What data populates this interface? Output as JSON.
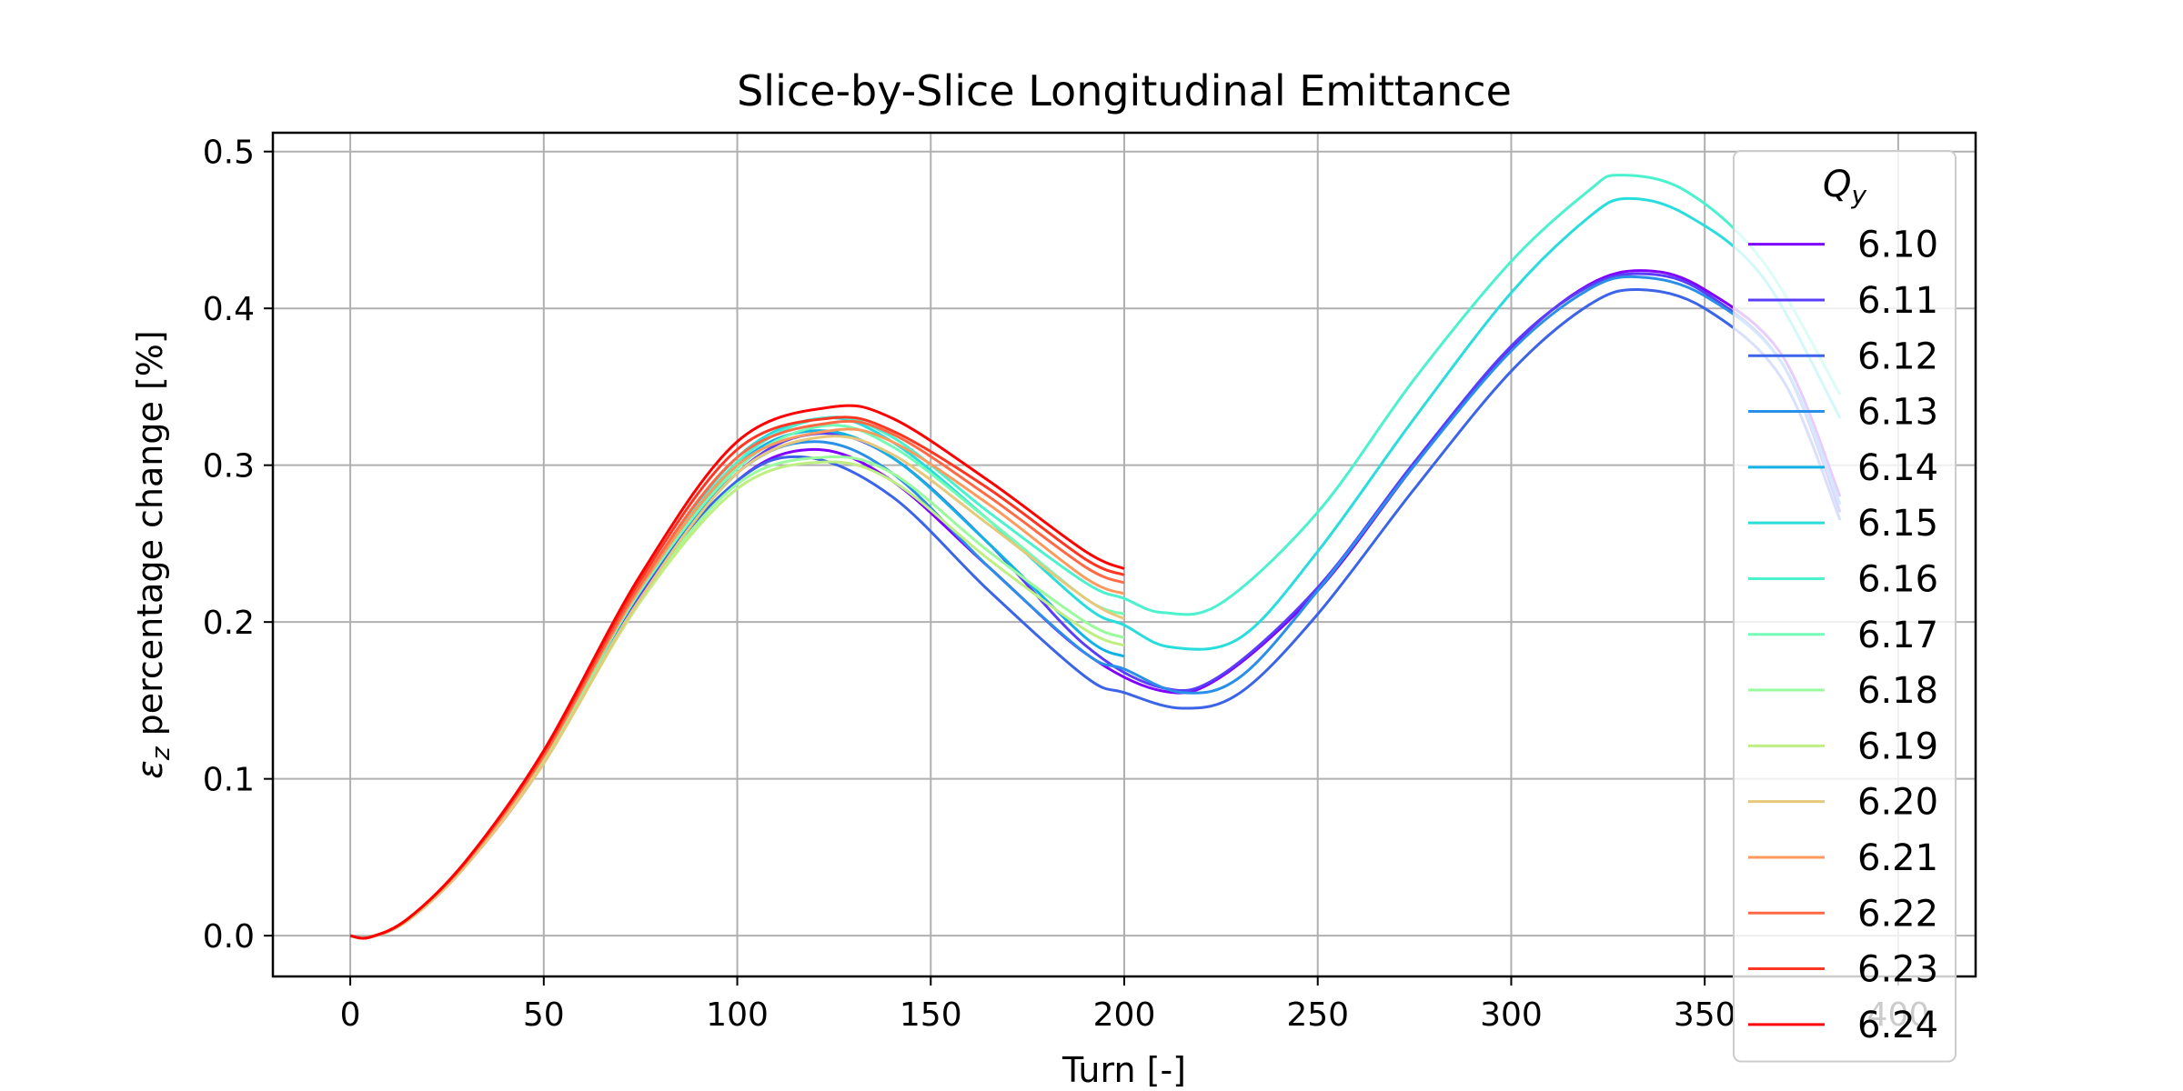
{
  "chart_data": {
    "type": "line",
    "title": "Slice-by-Slice Longitudinal Emittance",
    "xlabel": "Turn [-]",
    "ylabel_parts": [
      "ε",
      "z",
      " percentage change [%]"
    ],
    "xlim": [
      -20,
      420
    ],
    "ylim": [
      -0.026,
      0.512
    ],
    "xticks": [
      0,
      50,
      100,
      150,
      200,
      250,
      300,
      350,
      400
    ],
    "xtick_labels": [
      "0",
      "50",
      "100",
      "150",
      "200",
      "250",
      "300",
      "350",
      "400"
    ],
    "yticks": [
      0.0,
      0.1,
      0.2,
      0.3,
      0.4,
      0.5
    ],
    "ytick_labels": [
      "0.0",
      "0.1",
      "0.2",
      "0.3",
      "0.4",
      "0.5"
    ],
    "grid": true,
    "legend": {
      "title_parts": [
        "Q",
        "y"
      ],
      "placement": "right"
    },
    "series": [
      {
        "name": "6.10",
        "color": "#8000ff",
        "points": [
          [
            0,
            0
          ],
          [
            5,
            -0.001
          ],
          [
            15,
            0.01
          ],
          [
            30,
            0.045
          ],
          [
            50,
            0.11
          ],
          [
            75,
            0.215
          ],
          [
            100,
            0.29
          ],
          [
            120,
            0.31
          ],
          [
            140,
            0.29
          ],
          [
            165,
            0.235
          ],
          [
            190,
            0.18
          ],
          [
            210,
            0.156
          ],
          [
            225,
            0.165
          ],
          [
            250,
            0.22
          ],
          [
            275,
            0.3
          ],
          [
            300,
            0.375
          ],
          [
            320,
            0.415
          ],
          [
            335,
            0.424
          ],
          [
            350,
            0.412
          ],
          [
            370,
            0.37
          ],
          [
            385,
            0.28
          ]
        ]
      },
      {
        "name": "6.11",
        "color": "#5a3dfb",
        "points": [
          [
            0,
            0
          ],
          [
            5,
            -0.001
          ],
          [
            15,
            0.01
          ],
          [
            30,
            0.045
          ],
          [
            50,
            0.112
          ],
          [
            75,
            0.218
          ],
          [
            100,
            0.295
          ],
          [
            120,
            0.32
          ],
          [
            140,
            0.305
          ],
          [
            165,
            0.25
          ],
          [
            190,
            0.185
          ],
          [
            210,
            0.158
          ],
          [
            225,
            0.166
          ],
          [
            250,
            0.222
          ],
          [
            275,
            0.302
          ],
          [
            300,
            0.376
          ],
          [
            320,
            0.414
          ],
          [
            335,
            0.422
          ],
          [
            350,
            0.41
          ],
          [
            370,
            0.365
          ],
          [
            385,
            0.27
          ]
        ]
      },
      {
        "name": "6.12",
        "color": "#3c64e8",
        "points": [
          [
            0,
            0
          ],
          [
            5,
            -0.001
          ],
          [
            15,
            0.01
          ],
          [
            30,
            0.046
          ],
          [
            50,
            0.113
          ],
          [
            75,
            0.22
          ],
          [
            100,
            0.29
          ],
          [
            118,
            0.305
          ],
          [
            140,
            0.28
          ],
          [
            165,
            0.22
          ],
          [
            190,
            0.165
          ],
          [
            200,
            0.155
          ],
          [
            215,
            0.145
          ],
          [
            230,
            0.155
          ],
          [
            250,
            0.205
          ],
          [
            275,
            0.285
          ],
          [
            300,
            0.36
          ],
          [
            320,
            0.402
          ],
          [
            333,
            0.412
          ],
          [
            350,
            0.4
          ],
          [
            370,
            0.355
          ],
          [
            385,
            0.265
          ]
        ]
      },
      {
        "name": "6.13",
        "color": "#2a8fe9",
        "points": [
          [
            0,
            0
          ],
          [
            5,
            -0.001
          ],
          [
            15,
            0.01
          ],
          [
            30,
            0.046
          ],
          [
            50,
            0.113
          ],
          [
            75,
            0.221
          ],
          [
            100,
            0.295
          ],
          [
            120,
            0.315
          ],
          [
            140,
            0.295
          ],
          [
            165,
            0.235
          ],
          [
            190,
            0.18
          ],
          [
            200,
            0.17
          ],
          [
            215,
            0.155
          ],
          [
            230,
            0.165
          ],
          [
            250,
            0.22
          ],
          [
            275,
            0.3
          ],
          [
            300,
            0.373
          ],
          [
            320,
            0.412
          ],
          [
            333,
            0.42
          ],
          [
            350,
            0.408
          ],
          [
            370,
            0.365
          ],
          [
            385,
            0.275
          ]
        ]
      },
      {
        "name": "6.14",
        "color": "#12b2e6",
        "points": [
          [
            0,
            0
          ],
          [
            5,
            -0.001
          ],
          [
            15,
            0.01
          ],
          [
            30,
            0.046
          ],
          [
            50,
            0.114
          ],
          [
            75,
            0.222
          ],
          [
            100,
            0.3
          ],
          [
            120,
            0.322
          ],
          [
            140,
            0.305
          ],
          [
            165,
            0.25
          ],
          [
            190,
            0.19
          ],
          [
            200,
            0.178
          ]
        ]
      },
      {
        "name": "6.15",
        "color": "#2adddd",
        "points": [
          [
            0,
            0
          ],
          [
            5,
            -0.001
          ],
          [
            15,
            0.01
          ],
          [
            30,
            0.046
          ],
          [
            50,
            0.114
          ],
          [
            75,
            0.223
          ],
          [
            100,
            0.305
          ],
          [
            122,
            0.33
          ],
          [
            140,
            0.315
          ],
          [
            165,
            0.265
          ],
          [
            190,
            0.21
          ],
          [
            200,
            0.198
          ],
          [
            212,
            0.184
          ],
          [
            230,
            0.19
          ],
          [
            250,
            0.245
          ],
          [
            275,
            0.33
          ],
          [
            300,
            0.41
          ],
          [
            320,
            0.458
          ],
          [
            330,
            0.47
          ],
          [
            345,
            0.46
          ],
          [
            365,
            0.42
          ],
          [
            385,
            0.33
          ]
        ]
      },
      {
        "name": "6.16",
        "color": "#4cf2ce",
        "points": [
          [
            0,
            0
          ],
          [
            5,
            -0.001
          ],
          [
            15,
            0.01
          ],
          [
            30,
            0.046
          ],
          [
            50,
            0.113
          ],
          [
            75,
            0.222
          ],
          [
            100,
            0.302
          ],
          [
            122,
            0.33
          ],
          [
            140,
            0.318
          ],
          [
            165,
            0.27
          ],
          [
            190,
            0.225
          ],
          [
            200,
            0.215
          ],
          [
            210,
            0.206
          ],
          [
            225,
            0.212
          ],
          [
            250,
            0.27
          ],
          [
            275,
            0.355
          ],
          [
            300,
            0.43
          ],
          [
            320,
            0.475
          ],
          [
            328,
            0.485
          ],
          [
            345,
            0.475
          ],
          [
            365,
            0.43
          ],
          [
            385,
            0.345
          ]
        ]
      },
      {
        "name": "6.17",
        "color": "#72fcb6",
        "points": [
          [
            0,
            0
          ],
          [
            5,
            -0.001
          ],
          [
            15,
            0.01
          ],
          [
            30,
            0.046
          ],
          [
            50,
            0.113
          ],
          [
            75,
            0.22
          ],
          [
            100,
            0.298
          ],
          [
            122,
            0.325
          ],
          [
            140,
            0.312
          ],
          [
            165,
            0.265
          ],
          [
            190,
            0.215
          ],
          [
            200,
            0.205
          ]
        ]
      },
      {
        "name": "6.18",
        "color": "#99fb9c",
        "points": [
          [
            0,
            0
          ],
          [
            5,
            -0.001
          ],
          [
            15,
            0.01
          ],
          [
            30,
            0.045
          ],
          [
            50,
            0.111
          ],
          [
            75,
            0.215
          ],
          [
            100,
            0.288
          ],
          [
            122,
            0.305
          ],
          [
            140,
            0.295
          ],
          [
            165,
            0.245
          ],
          [
            190,
            0.2
          ],
          [
            200,
            0.19
          ]
        ]
      },
      {
        "name": "6.19",
        "color": "#bfee82",
        "points": [
          [
            0,
            0
          ],
          [
            5,
            -0.001
          ],
          [
            15,
            0.01
          ],
          [
            30,
            0.045
          ],
          [
            50,
            0.11
          ],
          [
            75,
            0.213
          ],
          [
            100,
            0.285
          ],
          [
            122,
            0.302
          ],
          [
            140,
            0.29
          ],
          [
            165,
            0.24
          ],
          [
            190,
            0.195
          ],
          [
            200,
            0.185
          ]
        ]
      },
      {
        "name": "6.20",
        "color": "#e6c87a",
        "points": [
          [
            0,
            0
          ],
          [
            5,
            -0.001
          ],
          [
            15,
            0.01
          ],
          [
            30,
            0.045
          ],
          [
            50,
            0.11
          ],
          [
            75,
            0.215
          ],
          [
            100,
            0.295
          ],
          [
            122,
            0.318
          ],
          [
            140,
            0.307
          ],
          [
            165,
            0.262
          ],
          [
            190,
            0.215
          ],
          [
            200,
            0.202
          ]
        ]
      },
      {
        "name": "6.21",
        "color": "#ff9a5e",
        "points": [
          [
            0,
            0
          ],
          [
            5,
            -0.001
          ],
          [
            15,
            0.011
          ],
          [
            30,
            0.047
          ],
          [
            50,
            0.114
          ],
          [
            75,
            0.222
          ],
          [
            100,
            0.3
          ],
          [
            124,
            0.322
          ],
          [
            140,
            0.315
          ],
          [
            165,
            0.275
          ],
          [
            190,
            0.228
          ],
          [
            200,
            0.218
          ]
        ]
      },
      {
        "name": "6.22",
        "color": "#ff6a45",
        "points": [
          [
            0,
            0
          ],
          [
            5,
            -0.001
          ],
          [
            15,
            0.011
          ],
          [
            30,
            0.047
          ],
          [
            50,
            0.115
          ],
          [
            75,
            0.224
          ],
          [
            100,
            0.305
          ],
          [
            124,
            0.327
          ],
          [
            140,
            0.32
          ],
          [
            165,
            0.28
          ],
          [
            190,
            0.235
          ],
          [
            200,
            0.225
          ]
        ]
      },
      {
        "name": "6.23",
        "color": "#ff3621",
        "points": [
          [
            0,
            0
          ],
          [
            5,
            -0.001
          ],
          [
            15,
            0.011
          ],
          [
            30,
            0.048
          ],
          [
            50,
            0.117
          ],
          [
            75,
            0.227
          ],
          [
            100,
            0.31
          ],
          [
            124,
            0.33
          ],
          [
            140,
            0.322
          ],
          [
            165,
            0.285
          ],
          [
            190,
            0.24
          ],
          [
            200,
            0.23
          ]
        ]
      },
      {
        "name": "6.24",
        "color": "#ff0000",
        "points": [
          [
            0,
            0
          ],
          [
            5,
            -0.001
          ],
          [
            15,
            0.011
          ],
          [
            30,
            0.048
          ],
          [
            50,
            0.118
          ],
          [
            75,
            0.23
          ],
          [
            100,
            0.315
          ],
          [
            124,
            0.337
          ],
          [
            140,
            0.33
          ],
          [
            165,
            0.29
          ],
          [
            190,
            0.245
          ],
          [
            200,
            0.234
          ]
        ]
      }
    ]
  }
}
